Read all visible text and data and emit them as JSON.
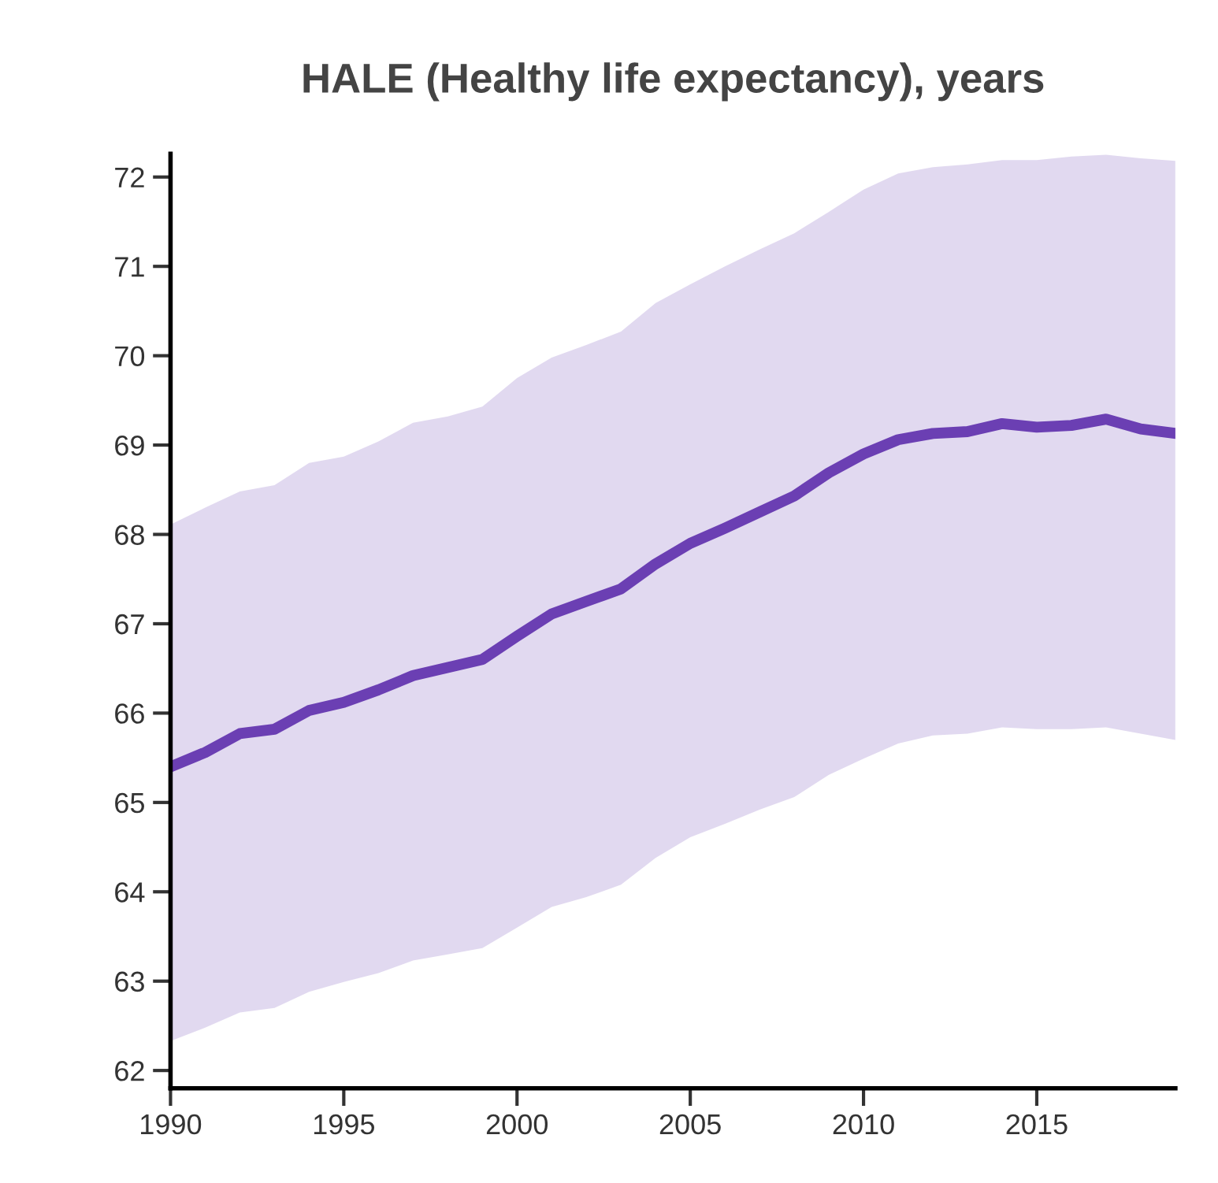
{
  "chart_data": {
    "type": "line",
    "title": "HALE (Healthy life expectancy), years",
    "x": [
      1990,
      1991,
      1992,
      1993,
      1994,
      1995,
      1996,
      1997,
      1998,
      1999,
      2000,
      2001,
      2002,
      2003,
      2004,
      2005,
      2006,
      2007,
      2008,
      2009,
      2010,
      2011,
      2012,
      2013,
      2014,
      2015,
      2016,
      2017,
      2018,
      2019
    ],
    "series": [
      {
        "color": "#6b3fb3",
        "values": [
          65.4,
          65.56,
          65.77,
          65.82,
          66.03,
          66.12,
          66.26,
          66.42,
          66.51,
          66.6,
          66.86,
          67.11,
          67.25,
          67.39,
          67.67,
          67.9,
          68.07,
          68.25,
          68.43,
          68.69,
          68.9,
          69.06,
          69.13,
          69.15,
          69.24,
          69.2,
          69.22,
          69.29,
          69.18,
          69.13
        ],
        "upper": [
          68.11,
          68.3,
          68.48,
          68.55,
          68.8,
          68.87,
          69.04,
          69.25,
          69.32,
          69.43,
          69.75,
          69.98,
          70.12,
          70.27,
          70.59,
          70.8,
          71.0,
          71.19,
          71.37,
          71.61,
          71.86,
          72.04,
          72.11,
          72.14,
          72.19,
          72.19,
          72.23,
          72.25,
          72.21,
          72.18
        ],
        "lower": [
          62.33,
          62.48,
          62.65,
          62.7,
          62.88,
          62.99,
          63.09,
          63.23,
          63.3,
          63.37,
          63.6,
          63.83,
          63.94,
          64.08,
          64.38,
          64.61,
          64.76,
          64.92,
          65.06,
          65.31,
          65.49,
          65.66,
          65.75,
          65.77,
          65.84,
          65.82,
          65.82,
          65.84,
          65.77,
          65.7
        ]
      }
    ],
    "xlim": [
      1990,
      2019
    ],
    "ylim": [
      61.8,
      72.26
    ],
    "xticks": [
      1990,
      1995,
      2000,
      2005,
      2010,
      2015
    ],
    "yticks": [
      62,
      63,
      64,
      65,
      66,
      67,
      68,
      69,
      70,
      71,
      72
    ],
    "grid": false,
    "legend": false,
    "marker": "none",
    "line_style": "solid"
  }
}
